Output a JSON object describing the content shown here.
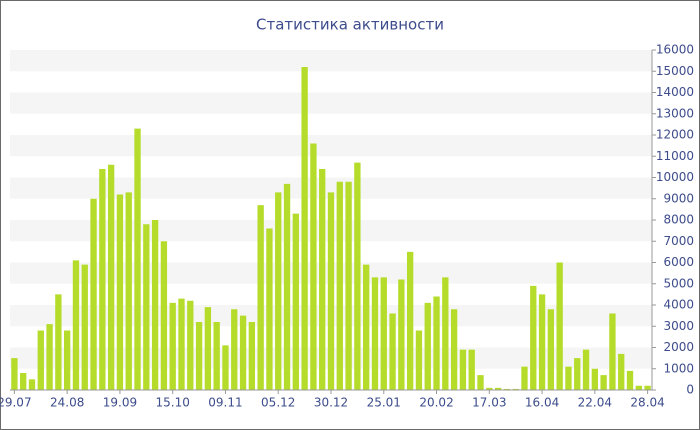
{
  "chart_data": {
    "type": "bar",
    "title": "Статистика активности",
    "categories": [
      "29.07",
      null,
      null,
      null,
      null,
      null,
      "24.08",
      null,
      null,
      null,
      null,
      null,
      "19.09",
      null,
      null,
      null,
      null,
      null,
      "15.10",
      null,
      null,
      null,
      null,
      null,
      "09.11",
      null,
      null,
      null,
      null,
      null,
      "05.12",
      null,
      null,
      null,
      null,
      null,
      "30.12",
      null,
      null,
      null,
      null,
      null,
      "25.01",
      null,
      null,
      null,
      null,
      null,
      "20.02",
      null,
      null,
      null,
      null,
      null,
      "17.03",
      null,
      null,
      null,
      null,
      null,
      "16.04",
      null,
      null,
      null,
      null,
      null,
      "22.04",
      null,
      null,
      null,
      null,
      null,
      "28.04"
    ],
    "values": [
      1500,
      800,
      500,
      2800,
      3100,
      4500,
      2800,
      6100,
      5900,
      9000,
      10400,
      10600,
      9200,
      9300,
      12300,
      7800,
      8000,
      7000,
      4100,
      4300,
      4200,
      3200,
      3900,
      3200,
      2100,
      3800,
      3500,
      3200,
      8700,
      7600,
      9300,
      9700,
      8300,
      15200,
      11600,
      10400,
      9300,
      9800,
      9800,
      10700,
      5900,
      5300,
      5300,
      3600,
      5200,
      6500,
      2800,
      4100,
      4400,
      5300,
      3800,
      1900,
      1900,
      700,
      100,
      100,
      50,
      50,
      1100,
      4900,
      4500,
      3800,
      6000,
      1100,
      1500,
      1900,
      1000,
      700,
      3600,
      1700,
      900,
      200,
      200
    ],
    "color": "#b5dc2a",
    "ylim": [
      0,
      16000
    ],
    "yticks": [
      0,
      1000,
      2000,
      3000,
      4000,
      5000,
      6000,
      7000,
      8000,
      9000,
      10000,
      11000,
      12000,
      13000,
      14000,
      15000,
      16000
    ],
    "grid": true
  }
}
